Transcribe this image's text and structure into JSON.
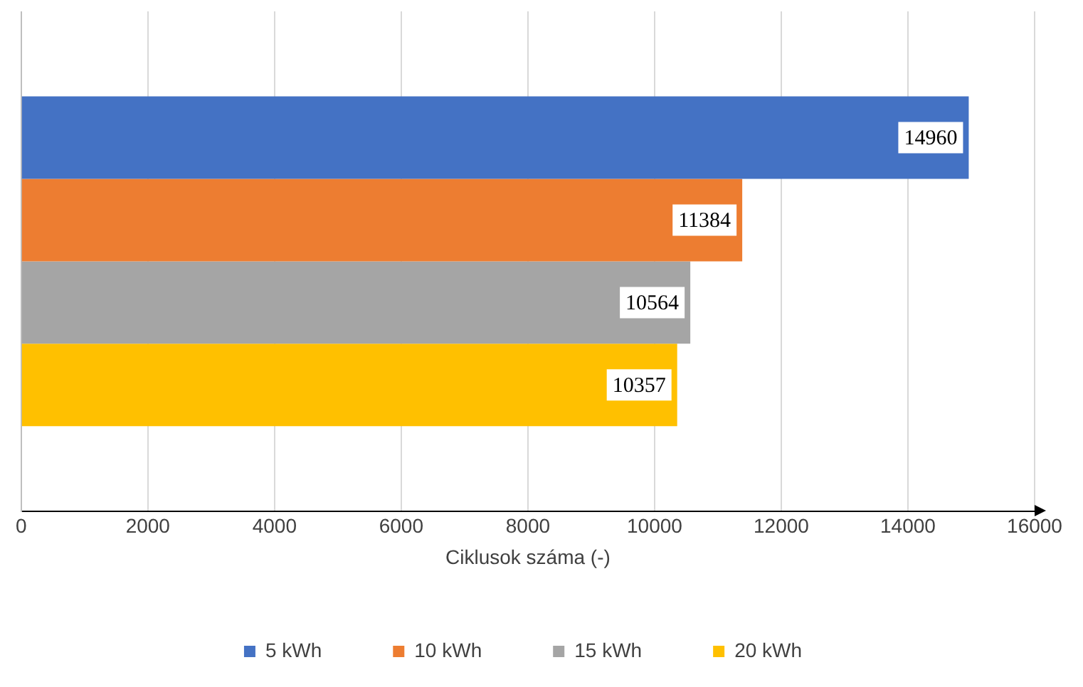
{
  "chart_data": {
    "type": "bar",
    "orientation": "horizontal",
    "xlabel": "Ciklusok száma (-)",
    "categories": [
      null
    ],
    "series": [
      {
        "name": "5 kWh",
        "color": "#4472c4",
        "values": [
          14960
        ]
      },
      {
        "name": "10 kWh",
        "color": "#ed7d31",
        "values": [
          11384
        ]
      },
      {
        "name": "15 kWh",
        "color": "#a5a5a5",
        "values": [
          10564
        ]
      },
      {
        "name": "20 kWh",
        "color": "#ffc000",
        "values": [
          10357
        ]
      }
    ],
    "xlim": [
      0,
      16000
    ],
    "xticks": [
      0,
      2000,
      4000,
      6000,
      8000,
      10000,
      12000,
      14000,
      16000
    ],
    "grid": "x",
    "legend": "bottom",
    "data_labels": true
  }
}
